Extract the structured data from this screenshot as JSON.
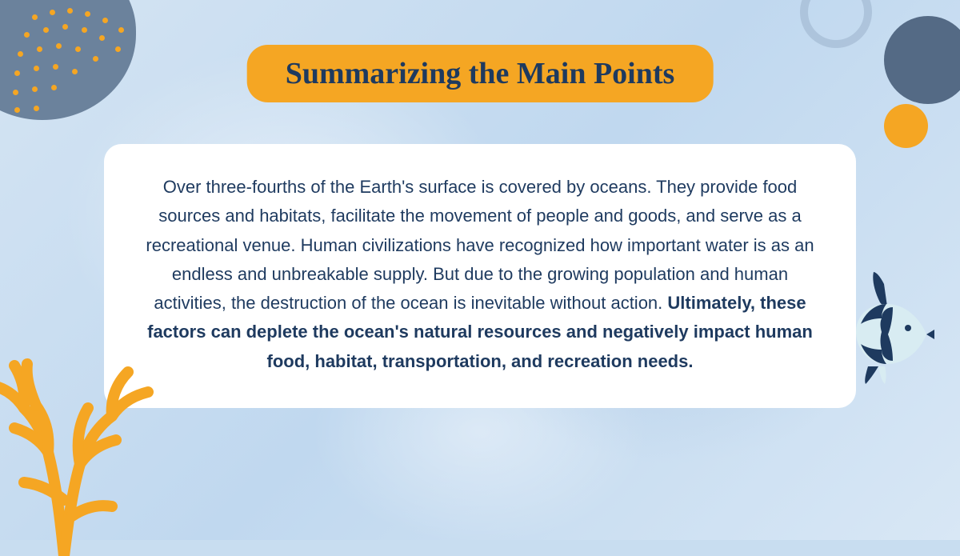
{
  "colors": {
    "navy": "#1e3a5f",
    "orange": "#f5a623",
    "slate": "#6b829c",
    "white": "#ffffff",
    "card_bg": "#ffffff",
    "text": "#1e3a5f"
  },
  "title": {
    "text": "Summarizing the Main Points",
    "bg": "#f5a623",
    "color": "#1e3a5f",
    "fontSize": 38
  },
  "card": {
    "bg": "#ffffff",
    "color": "#1e3a5f",
    "fontSize": 22,
    "body_regular": "Over three-fourths of the Earth's surface is covered by oceans. They provide food sources and habitats, facilitate the movement of people and goods, and serve as a recreational venue. Human civilizations have recognized how important water is as an endless and unbreakable supply. But due to the growing population and human activities, the destruction of the ocean is inevitable without action.",
    "body_bold": "Ultimately, these factors can deplete the ocean's natural resources and negatively impact human food, habitat, transportation, and recreation needs."
  },
  "decor": {
    "blob_color": "#6b829c",
    "dot_color": "#f5a623",
    "dot_size": 7,
    "circle_dark": "#546a85",
    "circle_orange": "#f5a623",
    "coral_color": "#f5a623",
    "fish_dark": "#1e3a5f",
    "fish_light": "#d8ecf2"
  }
}
